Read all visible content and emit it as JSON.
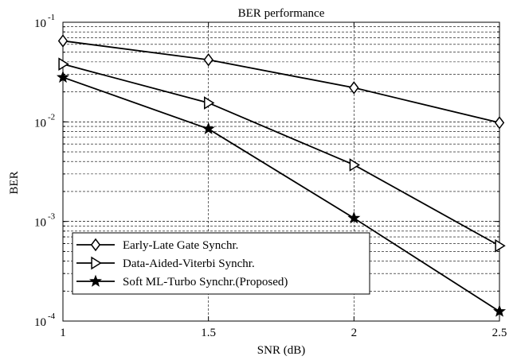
{
  "chart_data": {
    "type": "line",
    "title": "BER performance",
    "xlabel": "SNR (dB)",
    "ylabel": "BER",
    "x": [
      1,
      1.5,
      2,
      2.5
    ],
    "xlim": [
      1,
      2.5
    ],
    "ylim": [
      0.0001,
      0.1
    ],
    "yscale": "log",
    "grid": true,
    "grid_style": "dashed",
    "legend_position": "bottom-left",
    "xticks": [
      {
        "value": 1,
        "label": "1"
      },
      {
        "value": 1.5,
        "label": "1.5"
      },
      {
        "value": 2,
        "label": "2"
      },
      {
        "value": 2.5,
        "label": "2.5"
      }
    ],
    "yticks": [
      {
        "value": 0.1,
        "base": "10",
        "exp": "-1"
      },
      {
        "value": 0.01,
        "base": "10",
        "exp": "-2"
      },
      {
        "value": 0.001,
        "base": "10",
        "exp": "-3"
      },
      {
        "value": 0.0001,
        "base": "10",
        "exp": "-4"
      }
    ],
    "series": [
      {
        "name": "Early-Late Gate Synchr.",
        "marker": "diamond",
        "color": "#000000",
        "values": [
          0.065,
          0.042,
          0.022,
          0.0098
        ]
      },
      {
        "name": "Data-Aided-Viterbi Synchr.",
        "marker": "triangle-right",
        "color": "#000000",
        "values": [
          0.038,
          0.0155,
          0.0037,
          0.00057
        ]
      },
      {
        "name": "Soft ML-Turbo Synchr.(Proposed)",
        "marker": "star",
        "color": "#000000",
        "values": [
          0.028,
          0.0085,
          0.00108,
          0.000125
        ]
      }
    ]
  }
}
